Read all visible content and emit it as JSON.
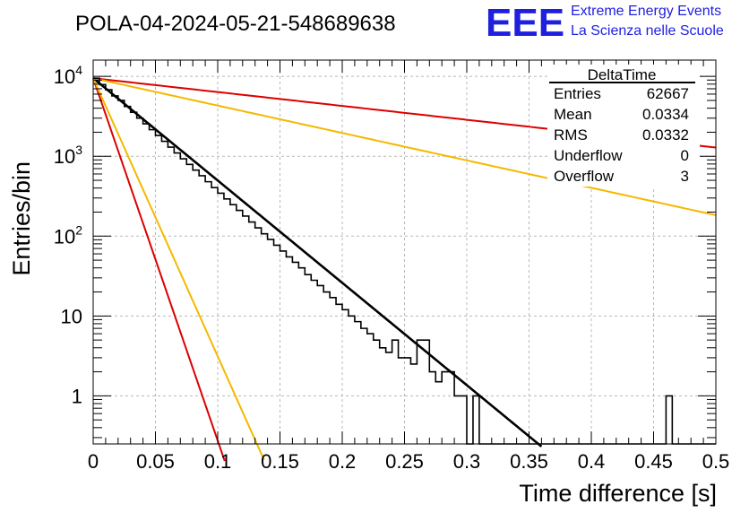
{
  "chart_data": {
    "type": "histogram",
    "title": "POLA-04-2024-05-21-548689638",
    "xlabel": "Time difference [s]",
    "ylabel": "Entries/bin",
    "xlim": [
      0,
      0.5
    ],
    "ylim": [
      0.25,
      16000
    ],
    "yscale": "log",
    "grid": true,
    "x_ticks": [
      {
        "value": 0,
        "label": "0"
      },
      {
        "value": 0.05,
        "label": "0.05"
      },
      {
        "value": 0.1,
        "label": "0.1"
      },
      {
        "value": 0.15,
        "label": "0.15"
      },
      {
        "value": 0.2,
        "label": "0.2"
      },
      {
        "value": 0.25,
        "label": "0.25"
      },
      {
        "value": 0.3,
        "label": "0.3"
      },
      {
        "value": 0.35,
        "label": "0.35"
      },
      {
        "value": 0.4,
        "label": "0.4"
      },
      {
        "value": 0.45,
        "label": "0.45"
      },
      {
        "value": 0.5,
        "label": "0.5"
      }
    ],
    "y_ticks": [
      {
        "value": 1,
        "base": "1",
        "exp": ""
      },
      {
        "value": 10,
        "base": "10",
        "exp": ""
      },
      {
        "value": 100,
        "base": "10",
        "exp": "2"
      },
      {
        "value": 1000,
        "base": "10",
        "exp": "3"
      },
      {
        "value": 10000,
        "base": "10",
        "exp": "4"
      }
    ],
    "histogram": {
      "name": "DeltaTime",
      "bin_width": 0.005,
      "color": "#000000",
      "values": [
        9500,
        7900,
        6800,
        5700,
        5000,
        4200,
        3550,
        3000,
        2550,
        2150,
        1820,
        1540,
        1300,
        1100,
        930,
        790,
        670,
        570,
        480,
        405,
        345,
        292,
        248,
        210,
        178,
        150,
        127,
        107,
        91,
        77,
        65,
        55,
        47,
        40,
        33,
        28,
        24,
        20,
        17,
        14,
        12,
        10,
        8.5,
        7,
        6,
        5,
        4,
        3.5,
        5,
        3,
        3,
        2.5,
        5,
        5,
        2,
        1.5,
        2,
        2,
        1,
        1,
        0,
        1,
        0,
        0,
        0,
        0,
        0,
        0,
        0,
        0,
        0,
        0,
        0,
        0,
        0,
        0,
        0,
        0,
        0,
        0,
        0,
        0,
        0,
        0,
        0,
        0,
        0,
        0,
        0,
        0,
        0,
        0,
        1,
        0,
        0,
        0,
        0,
        0,
        0,
        0
      ]
    },
    "curves": [
      {
        "type": "exponential",
        "color": "#000000",
        "amplitude": 9500,
        "slope": -29.5,
        "x_range": [
          0,
          0.36
        ]
      },
      {
        "type": "exponential",
        "color": "#dd0000",
        "amplitude": 9500,
        "slope": -4.0,
        "x_range": [
          0,
          0.5
        ]
      },
      {
        "type": "exponential",
        "color": "#f5b800",
        "amplitude": 9500,
        "slope": -7.9,
        "x_range": [
          0,
          0.5
        ]
      },
      {
        "type": "exponential",
        "color": "#dd0000",
        "amplitude": 9500,
        "slope": -104.5,
        "x_range": [
          0,
          0.12
        ]
      },
      {
        "type": "exponential",
        "color": "#f5b800",
        "amplitude": 9500,
        "slope": -80.2,
        "x_range": [
          0,
          0.15
        ]
      }
    ],
    "stats_box": {
      "title": "DeltaTime",
      "rows": [
        {
          "label": "Entries",
          "value": "62667"
        },
        {
          "label": "Mean",
          "value": "0.0334"
        },
        {
          "label": "RMS",
          "value": "0.0332"
        },
        {
          "label": "Underflow",
          "value": "0"
        },
        {
          "label": "Overflow",
          "value": "3"
        }
      ]
    },
    "logo": {
      "main": "EEE",
      "line1": "Extreme Energy Events",
      "line2": "La Scienza nelle Scuole"
    }
  }
}
